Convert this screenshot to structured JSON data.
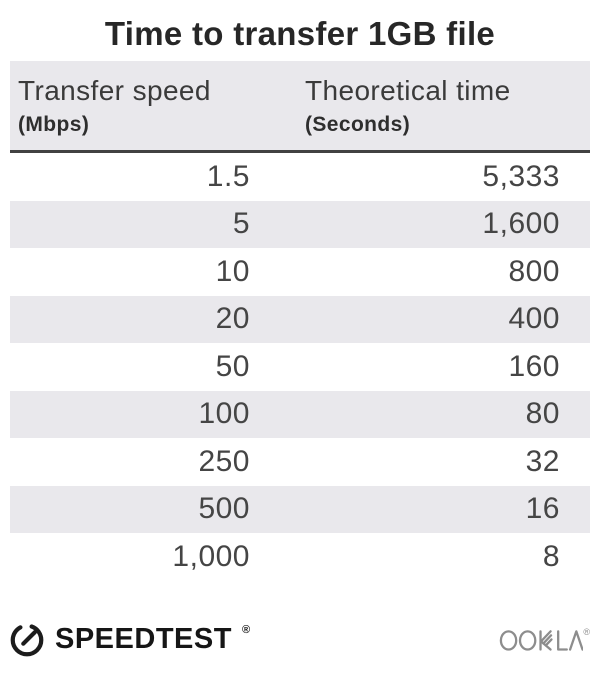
{
  "title": "Time to transfer 1GB file",
  "table": {
    "columns": [
      {
        "label": "Transfer speed",
        "unit": "(Mbps)"
      },
      {
        "label": "Theoretical time",
        "unit": "(Seconds)"
      }
    ],
    "rows": [
      {
        "speed": "1.5",
        "time": "5,333"
      },
      {
        "speed": "5",
        "time": "1,600"
      },
      {
        "speed": "10",
        "time": "800"
      },
      {
        "speed": "20",
        "time": "400"
      },
      {
        "speed": "50",
        "time": "160"
      },
      {
        "speed": "100",
        "time": "80"
      },
      {
        "speed": "250",
        "time": "32"
      },
      {
        "speed": "500",
        "time": "16"
      },
      {
        "speed": "1,000",
        "time": "8"
      }
    ]
  },
  "footer": {
    "speedtest_label": "SPEEDTEST",
    "speedtest_trademark": "®",
    "ookla_label": "OOKLA",
    "ookla_trademark": "®"
  },
  "icons": {
    "speedtest_gauge": "gauge-icon",
    "ookla_wordmark": "ookla-wordmark"
  },
  "colors": {
    "stripe": "#e9e8ec",
    "header_bg": "#e9e8ec",
    "rule": "#414141",
    "title_text": "#272727",
    "body_text": "#454545",
    "brand_dark": "#161616",
    "ookla_gray": "#8d8d8d"
  },
  "chart_data": {
    "type": "table",
    "title": "Time to transfer 1GB file",
    "columns": [
      "Transfer speed (Mbps)",
      "Theoretical time (Seconds)"
    ],
    "rows": [
      [
        1.5,
        5333
      ],
      [
        5,
        1600
      ],
      [
        10,
        800
      ],
      [
        20,
        400
      ],
      [
        50,
        160
      ],
      [
        100,
        80
      ],
      [
        250,
        32
      ],
      [
        500,
        16
      ],
      [
        1000,
        8
      ]
    ]
  }
}
